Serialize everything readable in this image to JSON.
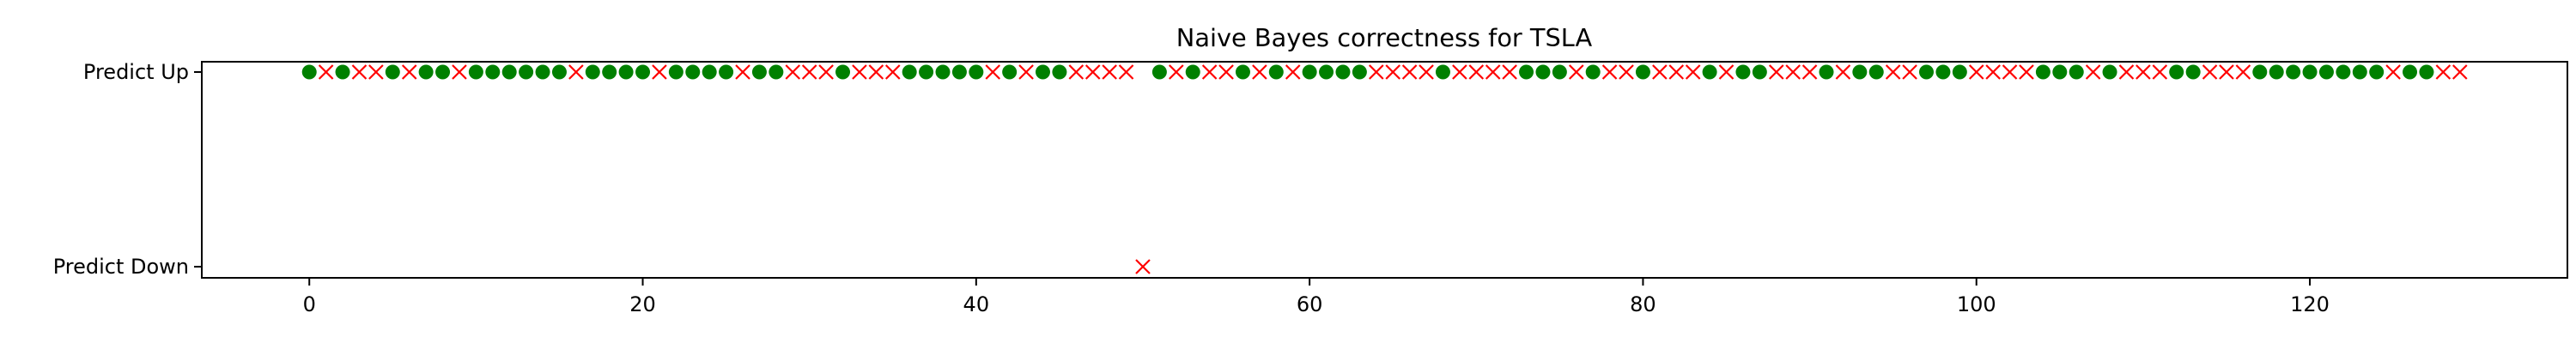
{
  "chart_data": {
    "type": "scatter",
    "title": "Naive Bayes correctness for TSLA",
    "xlabel": "",
    "ylabel": "",
    "xlim": [
      -6.45,
      135.45
    ],
    "x_ticks": [
      0,
      20,
      40,
      60,
      80,
      100,
      120
    ],
    "y_categories": [
      "Predict Down",
      "Predict Up"
    ],
    "grid": false,
    "legend": "none",
    "colors": {
      "correct": "#008000",
      "incorrect": "#ff0000"
    },
    "markers": {
      "correct": "filled-circle",
      "incorrect": "x-cross"
    },
    "points": [
      {
        "x": 0,
        "y": "Predict Up",
        "correct": true
      },
      {
        "x": 1,
        "y": "Predict Up",
        "correct": false
      },
      {
        "x": 2,
        "y": "Predict Up",
        "correct": true
      },
      {
        "x": 3,
        "y": "Predict Up",
        "correct": false
      },
      {
        "x": 4,
        "y": "Predict Up",
        "correct": false
      },
      {
        "x": 5,
        "y": "Predict Up",
        "correct": true
      },
      {
        "x": 6,
        "y": "Predict Up",
        "correct": false
      },
      {
        "x": 7,
        "y": "Predict Up",
        "correct": true
      },
      {
        "x": 8,
        "y": "Predict Up",
        "correct": true
      },
      {
        "x": 9,
        "y": "Predict Up",
        "correct": false
      },
      {
        "x": 10,
        "y": "Predict Up",
        "correct": true
      },
      {
        "x": 11,
        "y": "Predict Up",
        "correct": true
      },
      {
        "x": 12,
        "y": "Predict Up",
        "correct": true
      },
      {
        "x": 13,
        "y": "Predict Up",
        "correct": true
      },
      {
        "x": 14,
        "y": "Predict Up",
        "correct": true
      },
      {
        "x": 15,
        "y": "Predict Up",
        "correct": true
      },
      {
        "x": 16,
        "y": "Predict Up",
        "correct": false
      },
      {
        "x": 17,
        "y": "Predict Up",
        "correct": true
      },
      {
        "x": 18,
        "y": "Predict Up",
        "correct": true
      },
      {
        "x": 19,
        "y": "Predict Up",
        "correct": true
      },
      {
        "x": 20,
        "y": "Predict Up",
        "correct": true
      },
      {
        "x": 21,
        "y": "Predict Up",
        "correct": false
      },
      {
        "x": 22,
        "y": "Predict Up",
        "correct": true
      },
      {
        "x": 23,
        "y": "Predict Up",
        "correct": true
      },
      {
        "x": 24,
        "y": "Predict Up",
        "correct": true
      },
      {
        "x": 25,
        "y": "Predict Up",
        "correct": true
      },
      {
        "x": 26,
        "y": "Predict Up",
        "correct": false
      },
      {
        "x": 27,
        "y": "Predict Up",
        "correct": true
      },
      {
        "x": 28,
        "y": "Predict Up",
        "correct": true
      },
      {
        "x": 29,
        "y": "Predict Up",
        "correct": false
      },
      {
        "x": 30,
        "y": "Predict Up",
        "correct": false
      },
      {
        "x": 31,
        "y": "Predict Up",
        "correct": false
      },
      {
        "x": 32,
        "y": "Predict Up",
        "correct": true
      },
      {
        "x": 33,
        "y": "Predict Up",
        "correct": false
      },
      {
        "x": 34,
        "y": "Predict Up",
        "correct": false
      },
      {
        "x": 35,
        "y": "Predict Up",
        "correct": false
      },
      {
        "x": 36,
        "y": "Predict Up",
        "correct": true
      },
      {
        "x": 37,
        "y": "Predict Up",
        "correct": true
      },
      {
        "x": 38,
        "y": "Predict Up",
        "correct": true
      },
      {
        "x": 39,
        "y": "Predict Up",
        "correct": true
      },
      {
        "x": 40,
        "y": "Predict Up",
        "correct": true
      },
      {
        "x": 41,
        "y": "Predict Up",
        "correct": false
      },
      {
        "x": 42,
        "y": "Predict Up",
        "correct": true
      },
      {
        "x": 43,
        "y": "Predict Up",
        "correct": false
      },
      {
        "x": 44,
        "y": "Predict Up",
        "correct": true
      },
      {
        "x": 45,
        "y": "Predict Up",
        "correct": true
      },
      {
        "x": 46,
        "y": "Predict Up",
        "correct": false
      },
      {
        "x": 47,
        "y": "Predict Up",
        "correct": false
      },
      {
        "x": 48,
        "y": "Predict Up",
        "correct": false
      },
      {
        "x": 49,
        "y": "Predict Up",
        "correct": false
      },
      {
        "x": 50,
        "y": "Predict Down",
        "correct": false
      },
      {
        "x": 51,
        "y": "Predict Up",
        "correct": true
      },
      {
        "x": 52,
        "y": "Predict Up",
        "correct": false
      },
      {
        "x": 53,
        "y": "Predict Up",
        "correct": true
      },
      {
        "x": 54,
        "y": "Predict Up",
        "correct": false
      },
      {
        "x": 55,
        "y": "Predict Up",
        "correct": false
      },
      {
        "x": 56,
        "y": "Predict Up",
        "correct": true
      },
      {
        "x": 57,
        "y": "Predict Up",
        "correct": false
      },
      {
        "x": 58,
        "y": "Predict Up",
        "correct": true
      },
      {
        "x": 59,
        "y": "Predict Up",
        "correct": false
      },
      {
        "x": 60,
        "y": "Predict Up",
        "correct": true
      },
      {
        "x": 61,
        "y": "Predict Up",
        "correct": true
      },
      {
        "x": 62,
        "y": "Predict Up",
        "correct": true
      },
      {
        "x": 63,
        "y": "Predict Up",
        "correct": true
      },
      {
        "x": 64,
        "y": "Predict Up",
        "correct": false
      },
      {
        "x": 65,
        "y": "Predict Up",
        "correct": false
      },
      {
        "x": 66,
        "y": "Predict Up",
        "correct": false
      },
      {
        "x": 67,
        "y": "Predict Up",
        "correct": false
      },
      {
        "x": 68,
        "y": "Predict Up",
        "correct": true
      },
      {
        "x": 69,
        "y": "Predict Up",
        "correct": false
      },
      {
        "x": 70,
        "y": "Predict Up",
        "correct": false
      },
      {
        "x": 71,
        "y": "Predict Up",
        "correct": false
      },
      {
        "x": 72,
        "y": "Predict Up",
        "correct": false
      },
      {
        "x": 73,
        "y": "Predict Up",
        "correct": true
      },
      {
        "x": 74,
        "y": "Predict Up",
        "correct": true
      },
      {
        "x": 75,
        "y": "Predict Up",
        "correct": true
      },
      {
        "x": 76,
        "y": "Predict Up",
        "correct": false
      },
      {
        "x": 77,
        "y": "Predict Up",
        "correct": true
      },
      {
        "x": 78,
        "y": "Predict Up",
        "correct": false
      },
      {
        "x": 79,
        "y": "Predict Up",
        "correct": false
      },
      {
        "x": 80,
        "y": "Predict Up",
        "correct": true
      },
      {
        "x": 81,
        "y": "Predict Up",
        "correct": false
      },
      {
        "x": 82,
        "y": "Predict Up",
        "correct": false
      },
      {
        "x": 83,
        "y": "Predict Up",
        "correct": false
      },
      {
        "x": 84,
        "y": "Predict Up",
        "correct": true
      },
      {
        "x": 85,
        "y": "Predict Up",
        "correct": false
      },
      {
        "x": 86,
        "y": "Predict Up",
        "correct": true
      },
      {
        "x": 87,
        "y": "Predict Up",
        "correct": true
      },
      {
        "x": 88,
        "y": "Predict Up",
        "correct": false
      },
      {
        "x": 89,
        "y": "Predict Up",
        "correct": false
      },
      {
        "x": 90,
        "y": "Predict Up",
        "correct": false
      },
      {
        "x": 91,
        "y": "Predict Up",
        "correct": true
      },
      {
        "x": 92,
        "y": "Predict Up",
        "correct": false
      },
      {
        "x": 93,
        "y": "Predict Up",
        "correct": true
      },
      {
        "x": 94,
        "y": "Predict Up",
        "correct": true
      },
      {
        "x": 95,
        "y": "Predict Up",
        "correct": false
      },
      {
        "x": 96,
        "y": "Predict Up",
        "correct": false
      },
      {
        "x": 97,
        "y": "Predict Up",
        "correct": true
      },
      {
        "x": 98,
        "y": "Predict Up",
        "correct": true
      },
      {
        "x": 99,
        "y": "Predict Up",
        "correct": true
      },
      {
        "x": 100,
        "y": "Predict Up",
        "correct": false
      },
      {
        "x": 101,
        "y": "Predict Up",
        "correct": false
      },
      {
        "x": 102,
        "y": "Predict Up",
        "correct": false
      },
      {
        "x": 103,
        "y": "Predict Up",
        "correct": false
      },
      {
        "x": 104,
        "y": "Predict Up",
        "correct": true
      },
      {
        "x": 105,
        "y": "Predict Up",
        "correct": true
      },
      {
        "x": 106,
        "y": "Predict Up",
        "correct": true
      },
      {
        "x": 107,
        "y": "Predict Up",
        "correct": false
      },
      {
        "x": 108,
        "y": "Predict Up",
        "correct": true
      },
      {
        "x": 109,
        "y": "Predict Up",
        "correct": false
      },
      {
        "x": 110,
        "y": "Predict Up",
        "correct": false
      },
      {
        "x": 111,
        "y": "Predict Up",
        "correct": false
      },
      {
        "x": 112,
        "y": "Predict Up",
        "correct": true
      },
      {
        "x": 113,
        "y": "Predict Up",
        "correct": true
      },
      {
        "x": 114,
        "y": "Predict Up",
        "correct": false
      },
      {
        "x": 115,
        "y": "Predict Up",
        "correct": false
      },
      {
        "x": 116,
        "y": "Predict Up",
        "correct": false
      },
      {
        "x": 117,
        "y": "Predict Up",
        "correct": true
      },
      {
        "x": 118,
        "y": "Predict Up",
        "correct": true
      },
      {
        "x": 119,
        "y": "Predict Up",
        "correct": true
      },
      {
        "x": 120,
        "y": "Predict Up",
        "correct": true
      },
      {
        "x": 121,
        "y": "Predict Up",
        "correct": true
      },
      {
        "x": 122,
        "y": "Predict Up",
        "correct": true
      },
      {
        "x": 123,
        "y": "Predict Up",
        "correct": true
      },
      {
        "x": 124,
        "y": "Predict Up",
        "correct": true
      },
      {
        "x": 125,
        "y": "Predict Up",
        "correct": false
      },
      {
        "x": 126,
        "y": "Predict Up",
        "correct": true
      },
      {
        "x": 127,
        "y": "Predict Up",
        "correct": true
      },
      {
        "x": 128,
        "y": "Predict Up",
        "correct": false
      },
      {
        "x": 129,
        "y": "Predict Up",
        "correct": false
      }
    ]
  }
}
